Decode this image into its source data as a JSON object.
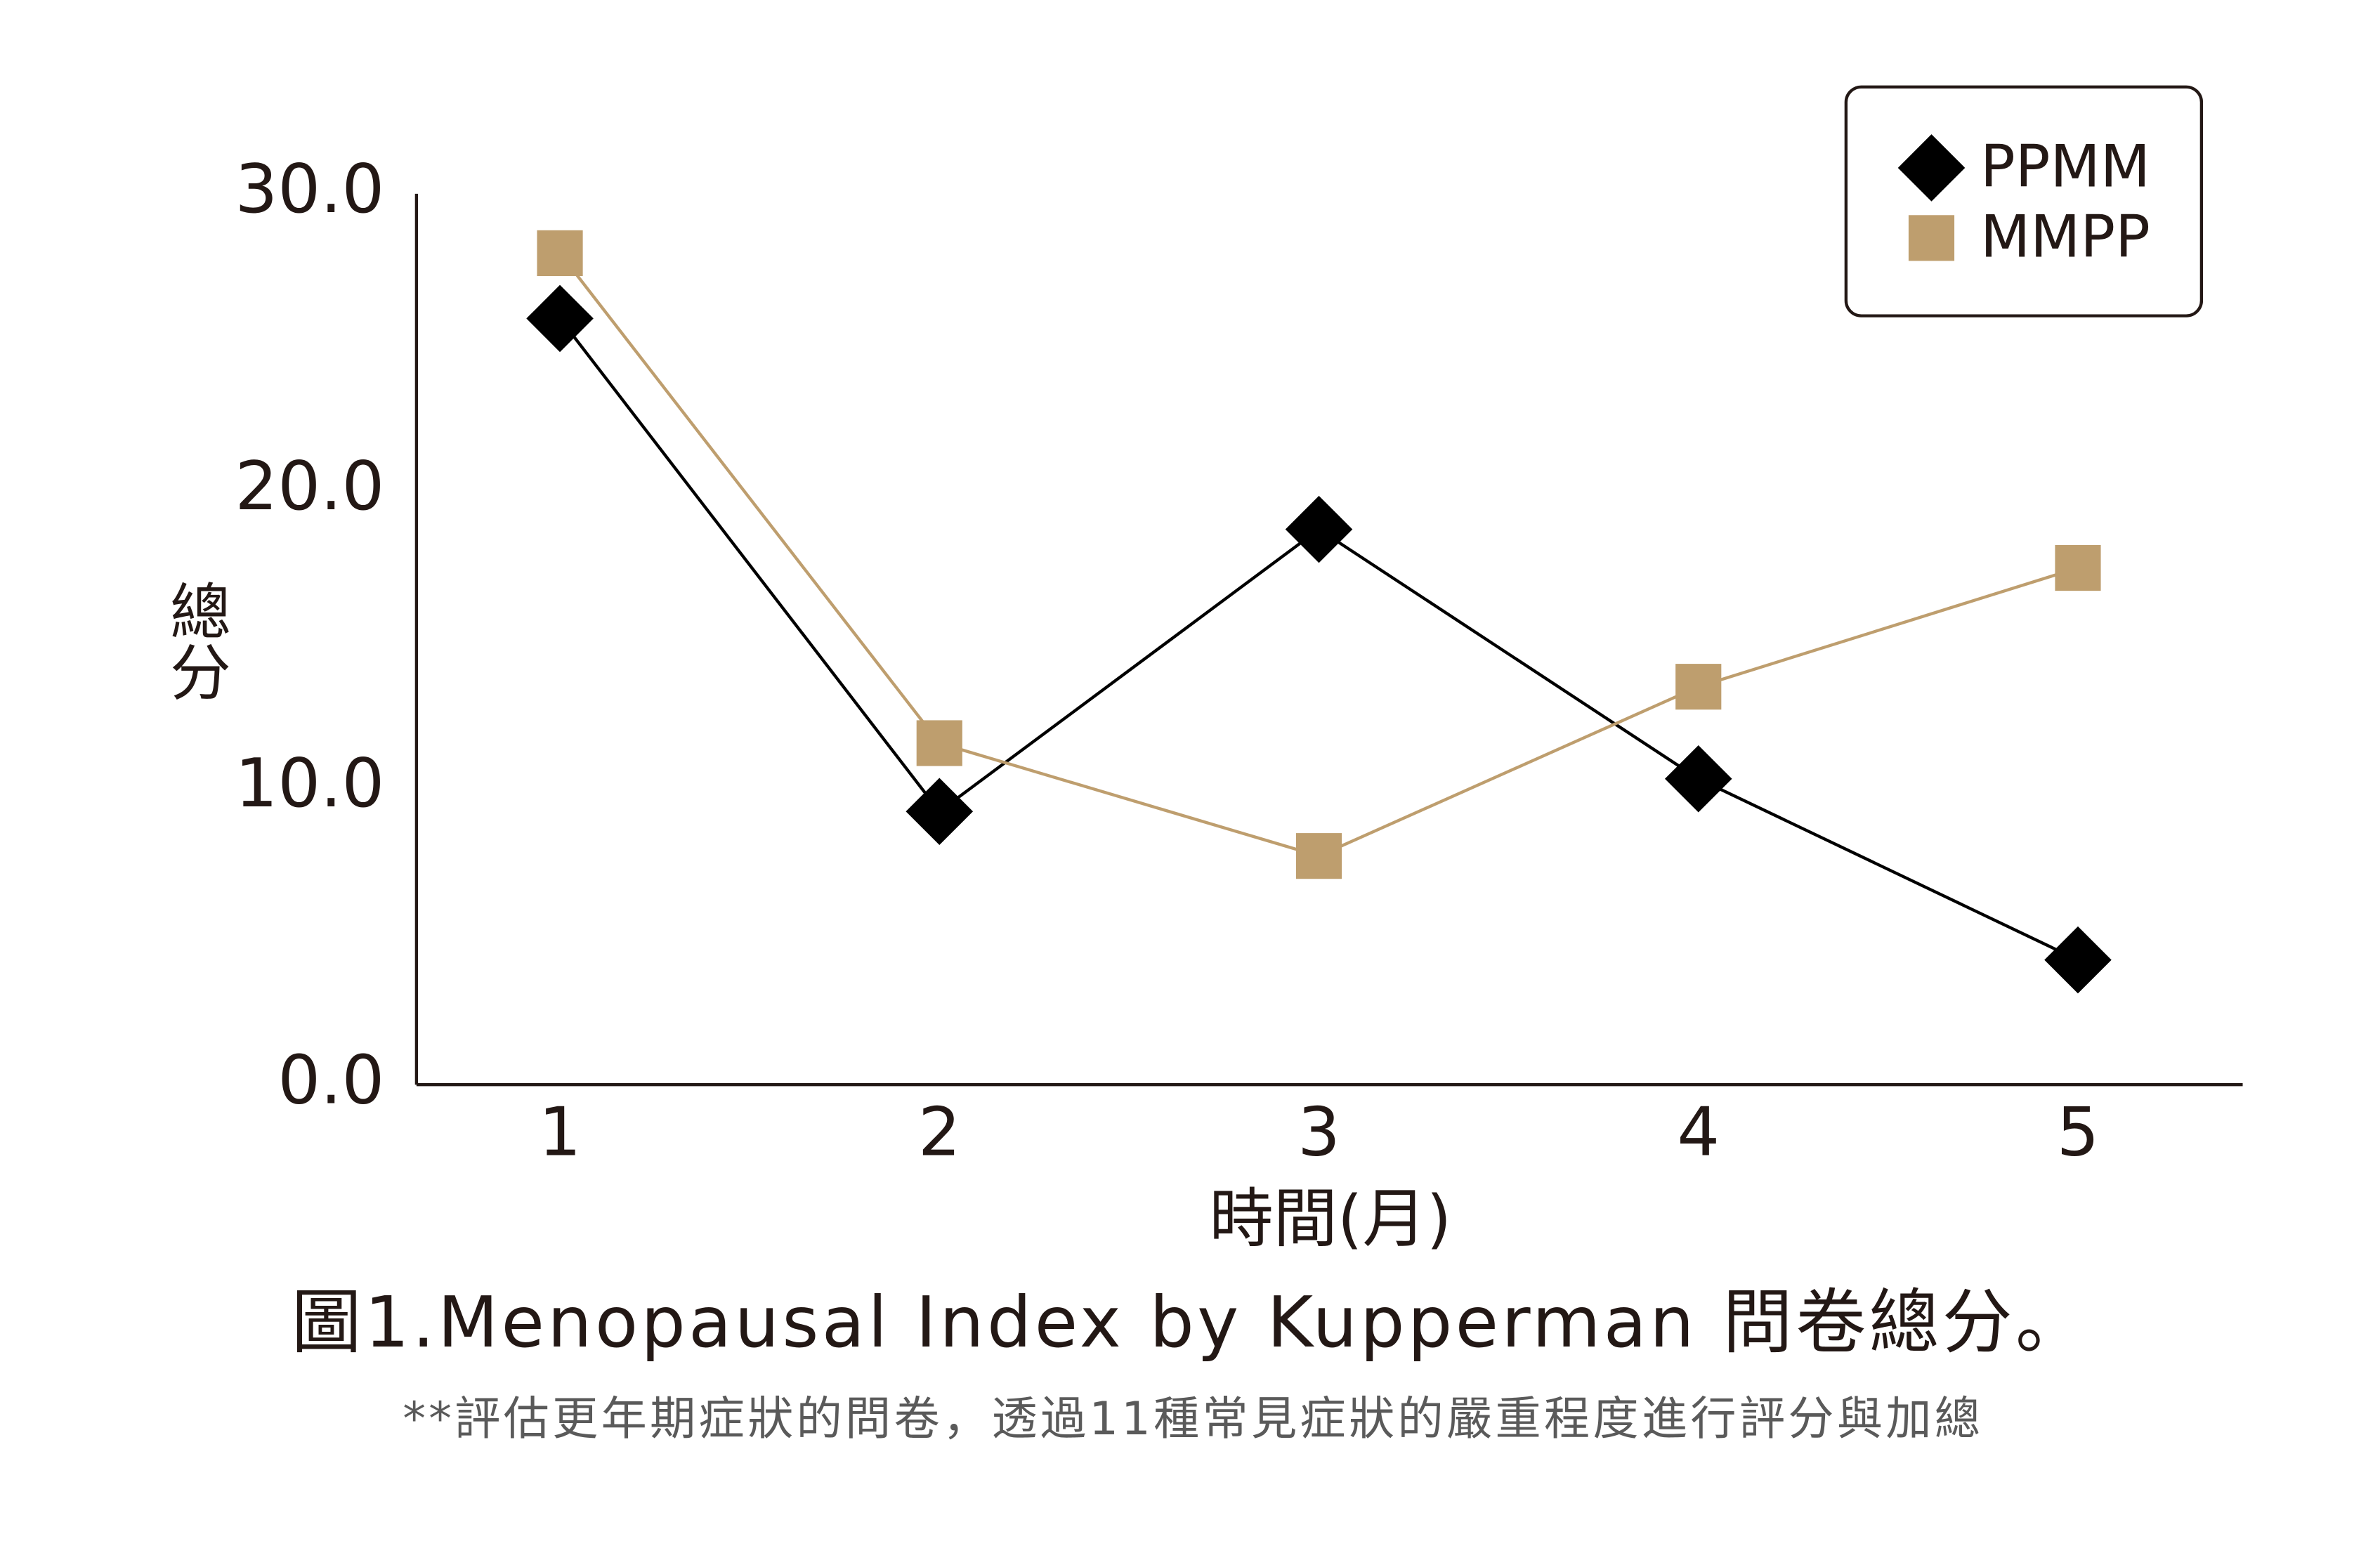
{
  "chart_data": {
    "type": "line",
    "categories": [
      "1",
      "2",
      "3",
      "4",
      "5"
    ],
    "series": [
      {
        "name": "PPMM",
        "color": "#000000",
        "marker": "diamond",
        "values": [
          25.8,
          9.2,
          18.7,
          10.3,
          4.2
        ]
      },
      {
        "name": "MMPP",
        "color": "#be9e6e",
        "marker": "square",
        "values": [
          28.0,
          11.5,
          7.7,
          13.4,
          17.4
        ]
      }
    ],
    "ylabel": "總分",
    "xlabel": "時間(月)",
    "ylim": [
      0,
      30
    ],
    "yticks": [
      {
        "value": 0,
        "label": "0.0"
      },
      {
        "value": 10,
        "label": "10.0"
      },
      {
        "value": 20,
        "label": "20.0"
      },
      {
        "value": 30,
        "label": "30.0"
      }
    ],
    "grid": false,
    "legend": "upper right",
    "caption": "圖1.Menopausal Index by Kupperman 問卷總分。",
    "note": "**評估更年期症狀的問卷，透過11種常見症狀的嚴重程度進行評分與加總"
  }
}
